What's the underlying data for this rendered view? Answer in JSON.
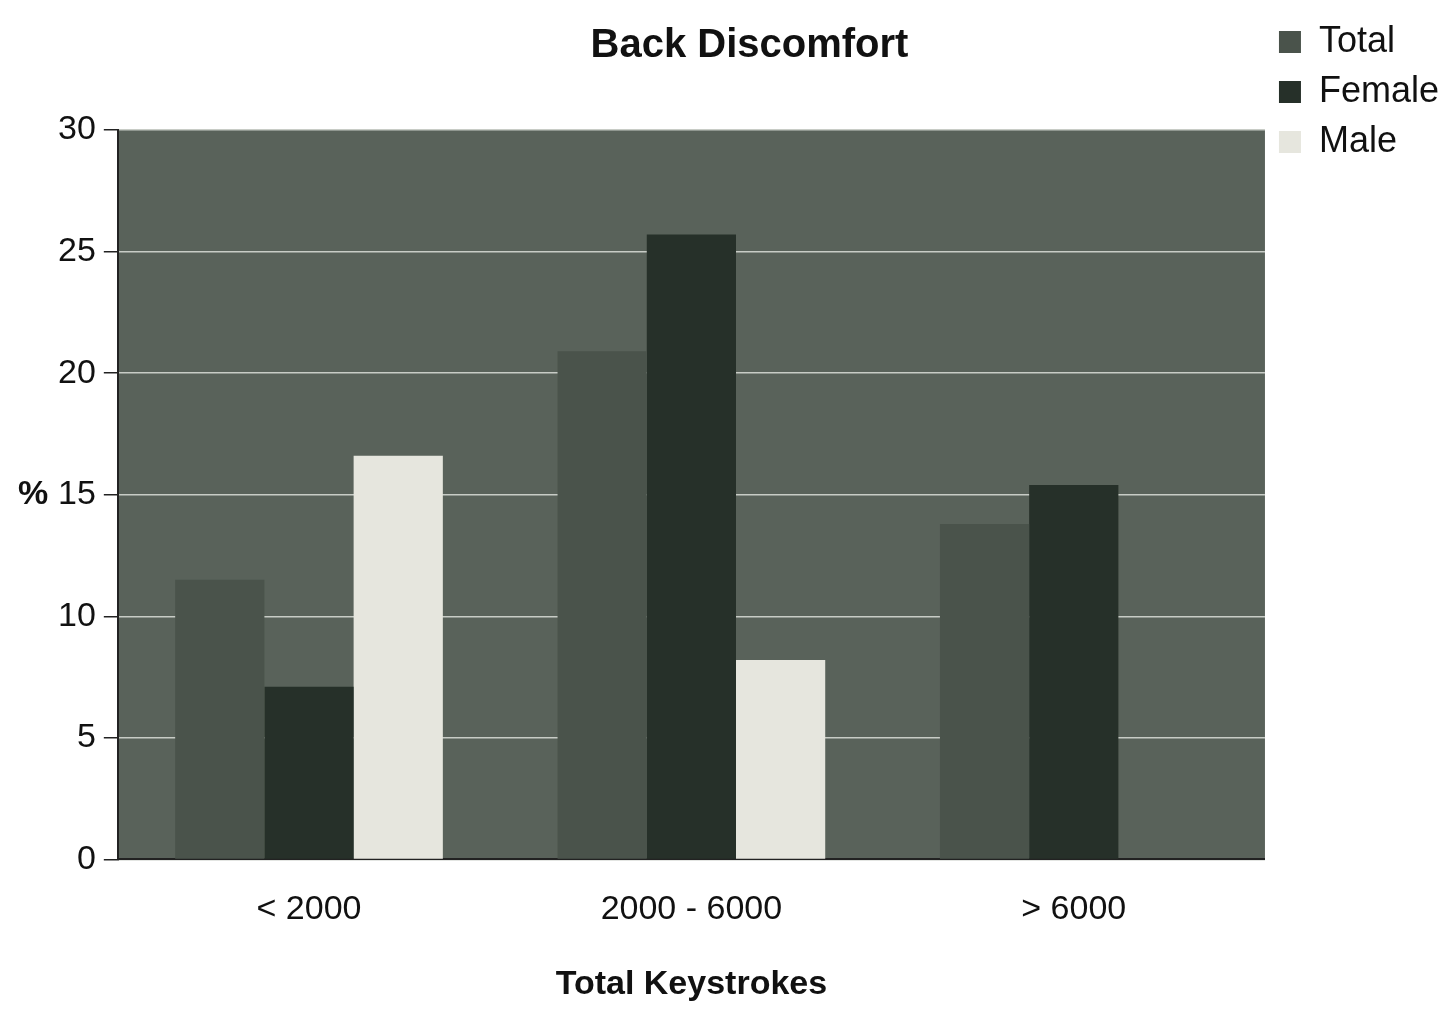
{
  "chart_data": {
    "type": "bar",
    "title": "Back Discomfort",
    "xlabel": "Total Keystrokes",
    "ylabel": "%",
    "categories": [
      "< 2000",
      "2000 - 6000",
      "> 6000"
    ],
    "series": [
      {
        "name": "Total",
        "color": "#4a534b",
        "values": [
          11.5,
          20.9,
          13.8
        ]
      },
      {
        "name": "Female",
        "color": "#263029",
        "values": [
          7.1,
          25.7,
          15.4
        ]
      },
      {
        "name": "Male",
        "color": "#e6e6de",
        "values": [
          16.6,
          8.2,
          null
        ]
      }
    ],
    "ylim": [
      0,
      30
    ],
    "yticks": [
      0,
      5,
      10,
      15,
      20,
      25,
      30
    ],
    "grid": "y",
    "legend": "top right"
  }
}
